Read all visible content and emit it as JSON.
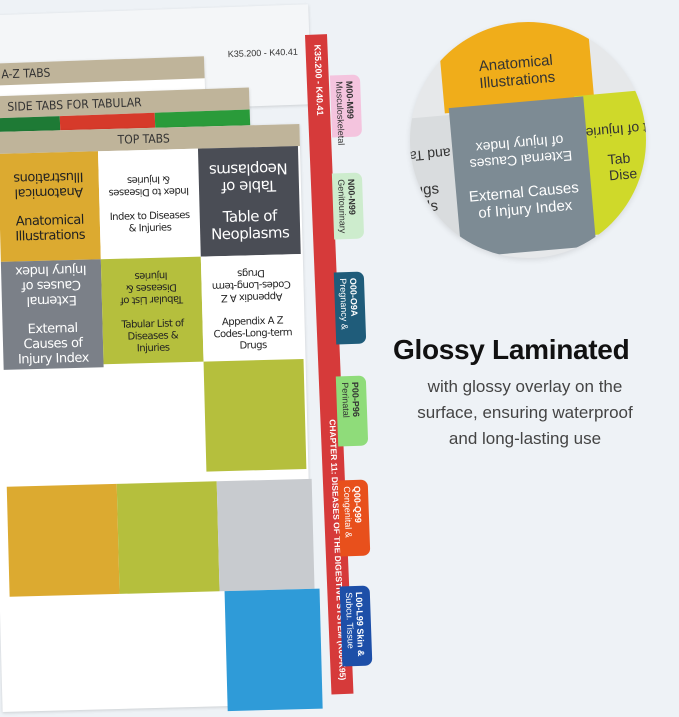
{
  "back_sheet": {
    "range_label": "K35.200 - K40.41"
  },
  "sheets": {
    "az_tabs": "A-Z TABS",
    "side_tabs": "SIDE TABS FOR TABULAR",
    "top_tabs": "TOP TABS"
  },
  "cells": [
    {
      "flipped": "Anatomical Illustrations",
      "label": "Anatomical Illustrations",
      "color": "#dcaa30"
    },
    {
      "flipped": "Index to Diseases & Injuries",
      "label": "Index to Diseases & Injuries",
      "color": "#ffffff"
    },
    {
      "flipped": "Table of Neoplasms",
      "label": "Table of Neoplasms",
      "color": "#4a4d55"
    },
    {
      "flipped": "External Causes of Injury Index",
      "label": "External Causes of Injury Index",
      "color": "#7b8088"
    },
    {
      "flipped": "Tabular List of Diseases & Injuries",
      "label": "Tabular List of Diseases & Injuries",
      "color": "#b5bf3d"
    },
    {
      "flipped": "Appendix A Z Codes-Long-term Drugs",
      "label": "Appendix A Z Codes-Long-term Drugs",
      "color": "#ffffff"
    }
  ],
  "spine": {
    "range": "K35.200 - K40.41",
    "chapter": "CHAPTER 11: DISEASES OF THE DIGESTIVE SYSTEM (K00-K95)"
  },
  "side_tabs": [
    {
      "code": "M00-M99",
      "name": "Musculoskeletal",
      "color": "#f4c4de"
    },
    {
      "code": "N00-N99",
      "name": "Genitourinary",
      "color": "#cdeccd"
    },
    {
      "code": "O00-O9A",
      "name": "Pregnancy &",
      "color": "#1f5c7a"
    },
    {
      "code": "P00-P96",
      "name": "Perinatal",
      "color": "#8fdc7a"
    },
    {
      "code": "Q00-Q99",
      "name": "Congenital &",
      "color": "#e8501c"
    },
    {
      "code": "L00-L99 Skin &",
      "name": "Subcu. Tissue",
      "color": "#1d4fa8"
    }
  ],
  "closeup": {
    "top": "Anatomical Illustrations",
    "center_flipped": "External Causes of Injury Index",
    "center": "External Causes of Injury Index",
    "right_flipped": "ist of Injuries",
    "right": "Tab Dise",
    "left_flipped": "and Tab",
    "left": "rugs cals"
  },
  "feature": {
    "title": "Glossy Laminated",
    "lines": [
      "with glossy overlay on the",
      "surface, ensuring waterproof",
      "and long-lasting use"
    ]
  }
}
